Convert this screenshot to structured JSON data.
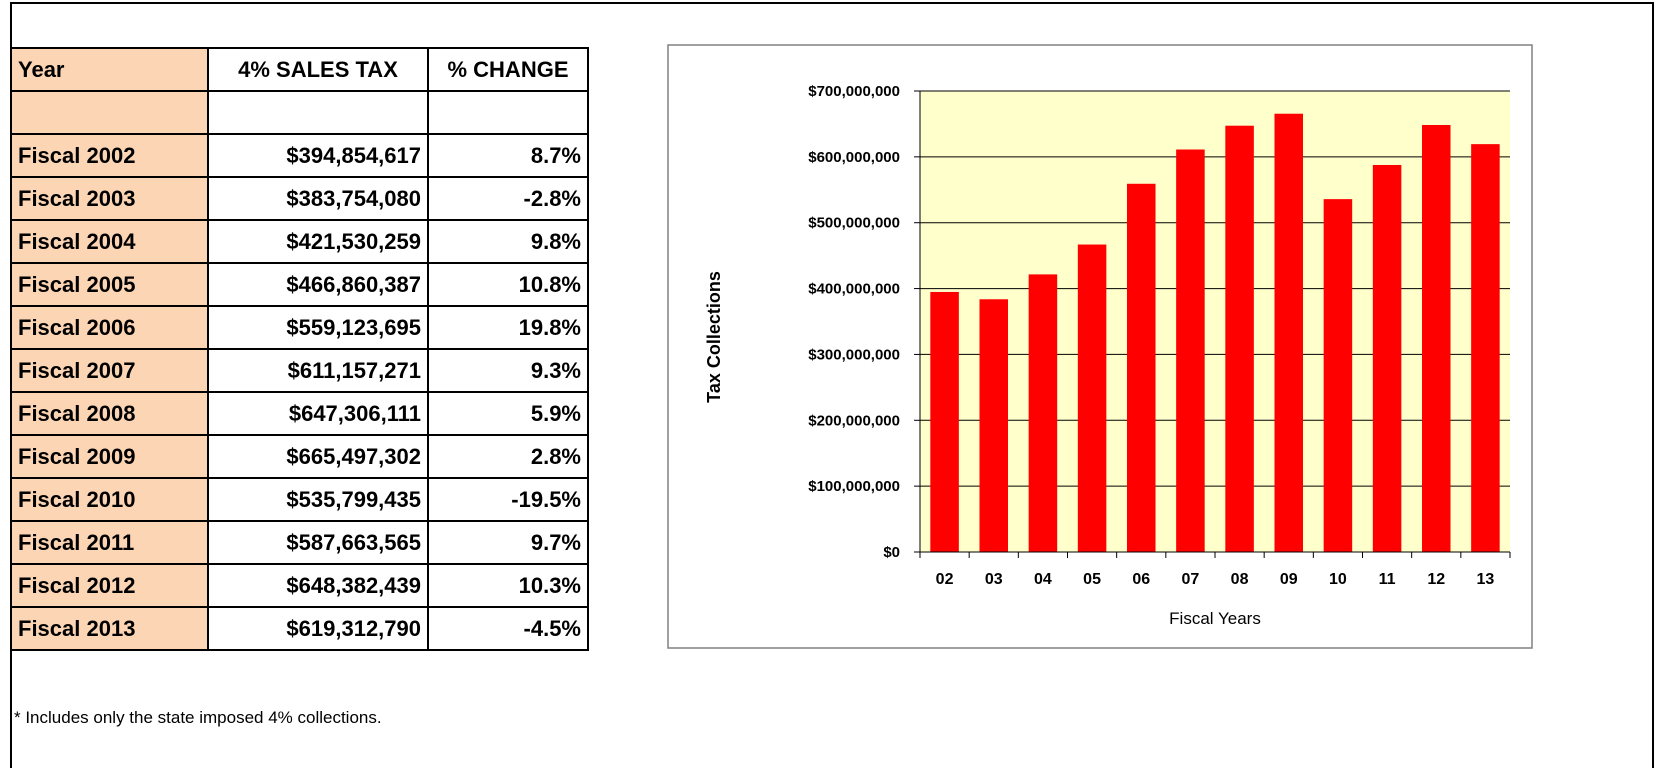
{
  "table": {
    "header": [
      "Year",
      "4% SALES TAX",
      "% CHANGE"
    ],
    "rows": [
      [
        "Fiscal 2002",
        "$394,854,617",
        "8.7%"
      ],
      [
        "Fiscal 2003",
        "$383,754,080",
        "-2.8%"
      ],
      [
        "Fiscal 2004",
        "$421,530,259",
        "9.8%"
      ],
      [
        "Fiscal 2005",
        "$466,860,387",
        "10.8%"
      ],
      [
        "Fiscal 2006",
        "$559,123,695",
        "19.8%"
      ],
      [
        "Fiscal 2007",
        "$611,157,271",
        "9.3%"
      ],
      [
        "Fiscal 2008",
        "$647,306,111",
        "5.9%"
      ],
      [
        "Fiscal 2009",
        "$665,497,302",
        "2.8%"
      ],
      [
        "Fiscal 2010",
        "$535,799,435",
        "-19.5%"
      ],
      [
        "Fiscal 2011",
        "$587,663,565",
        "9.7%"
      ],
      [
        "Fiscal 2012",
        "$648,382,439",
        "10.3%"
      ],
      [
        "Fiscal 2013",
        "$619,312,790",
        "-4.5%"
      ]
    ]
  },
  "chart_data": {
    "type": "bar",
    "x_label": "Fiscal Years",
    "y_label": "Tax Collections",
    "categories": [
      "02",
      "03",
      "04",
      "05",
      "06",
      "07",
      "08",
      "09",
      "10",
      "11",
      "12",
      "13"
    ],
    "values": [
      394854617,
      383754080,
      421530259,
      466860387,
      559123695,
      611157271,
      647306111,
      665497302,
      535799435,
      587663565,
      648382439,
      619312790
    ],
    "color": "#ff0000",
    "plot_background": "#ffffcc",
    "ylim": [
      0,
      700000000
    ],
    "yticks": [
      {
        "value": 0,
        "label": "$0"
      },
      {
        "value": 100000000,
        "label": "$100,000,000"
      },
      {
        "value": 200000000,
        "label": "$200,000,000"
      },
      {
        "value": 300000000,
        "label": "$300,000,000"
      },
      {
        "value": 400000000,
        "label": "$400,000,000"
      },
      {
        "value": 500000000,
        "label": "$500,000,000"
      },
      {
        "value": 600000000,
        "label": "$600,000,000"
      },
      {
        "value": 700000000,
        "label": "$700,000,000"
      }
    ],
    "grid": true
  },
  "footnote": "* Includes only the state imposed 4% collections."
}
